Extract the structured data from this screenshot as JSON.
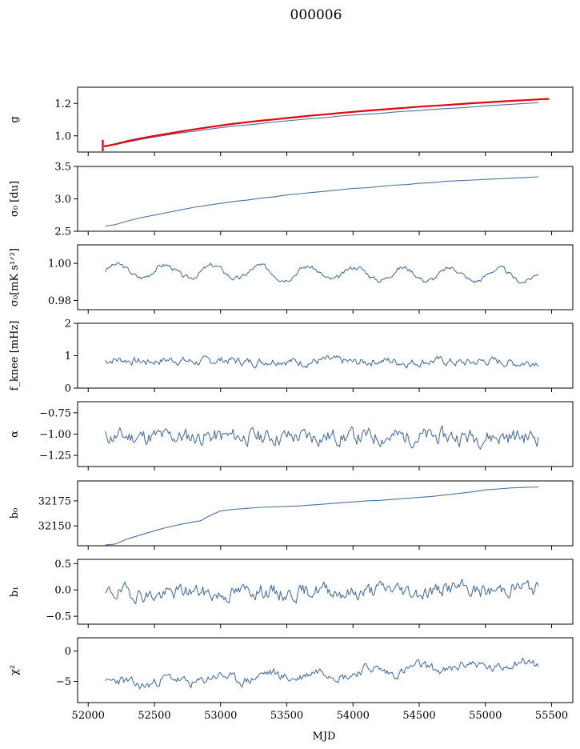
{
  "figure": {
    "title": "000006",
    "xlabel": "MJD",
    "xlim": [
      51920,
      55660
    ],
    "xticks": [
      52000,
      52500,
      53000,
      53500,
      54000,
      54500,
      55000,
      55500
    ],
    "line_color": "#4c72a4",
    "accent_color": "#e8000b"
  },
  "chart_data": [
    {
      "type": "line",
      "id": "g",
      "ylabel": "g",
      "ylim": [
        0.9,
        1.3
      ],
      "yticks": [
        1.0,
        1.2
      ],
      "yticklabels": [
        "1.0",
        "1.2"
      ],
      "show_xticklabels": false,
      "series": [
        {
          "color": "#4c72a4",
          "x": [
            52120,
            52200,
            52300,
            52400,
            52500,
            52600,
            52700,
            52800,
            52900,
            53000,
            53100,
            53200,
            53300,
            53400,
            53500,
            53600,
            53700,
            53800,
            53900,
            54000,
            54100,
            54200,
            54300,
            54400,
            54500,
            54600,
            54700,
            54800,
            54900,
            55000,
            55100,
            55200,
            55300,
            55400
          ],
          "y": [
            0.94,
            0.945,
            0.962,
            0.978,
            0.993,
            1.005,
            1.018,
            1.028,
            1.04,
            1.05,
            1.06,
            1.067,
            1.075,
            1.085,
            1.092,
            1.1,
            1.108,
            1.113,
            1.122,
            1.128,
            1.133,
            1.138,
            1.146,
            1.152,
            1.156,
            1.163,
            1.168,
            1.172,
            1.178,
            1.185,
            1.19,
            1.195,
            1.2,
            1.205
          ]
        },
        {
          "color": "#e8000b",
          "x": [
            52120,
            52200,
            52300,
            52400,
            52500,
            52600,
            52700,
            52800,
            52900,
            53000,
            53100,
            53200,
            53300,
            53400,
            53500,
            53600,
            53700,
            53800,
            53900,
            54000,
            54100,
            54200,
            54300,
            54400,
            54500,
            54600,
            54700,
            54800,
            54900,
            55000,
            55100,
            55200,
            55300,
            55400,
            55480
          ],
          "y": [
            0.935,
            0.948,
            0.968,
            0.985,
            1.0,
            1.013,
            1.027,
            1.04,
            1.052,
            1.064,
            1.075,
            1.084,
            1.093,
            1.101,
            1.11,
            1.118,
            1.126,
            1.133,
            1.141,
            1.148,
            1.155,
            1.161,
            1.167,
            1.173,
            1.18,
            1.185,
            1.19,
            1.196,
            1.201,
            1.206,
            1.211,
            1.216,
            1.22,
            1.225,
            1.228
          ]
        }
      ],
      "errorbar": {
        "x": 52110,
        "y": 0.94,
        "ylow": 0.905,
        "yhigh": 0.975
      }
    },
    {
      "type": "line",
      "id": "sigma0_du",
      "ylabel": "σ₀ [du]",
      "ylim": [
        2.5,
        3.5
      ],
      "yticks": [
        2.5,
        3.0,
        3.5
      ],
      "yticklabels": [
        "2.5",
        "3.0",
        "3.5"
      ],
      "show_xticklabels": false,
      "series": [
        {
          "color": "#4c72a4",
          "x": [
            52130,
            52200,
            52300,
            52400,
            52500,
            52600,
            52700,
            52800,
            52900,
            53000,
            53100,
            53200,
            53300,
            53400,
            53500,
            53600,
            53700,
            53800,
            53900,
            54000,
            54100,
            54200,
            54300,
            54400,
            54500,
            54600,
            54700,
            54800,
            54900,
            55000,
            55100,
            55200,
            55300,
            55400
          ],
          "y": [
            2.58,
            2.6,
            2.66,
            2.71,
            2.75,
            2.79,
            2.83,
            2.87,
            2.9,
            2.93,
            2.96,
            2.98,
            3.01,
            3.03,
            3.06,
            3.08,
            3.1,
            3.12,
            3.14,
            3.16,
            3.17,
            3.19,
            3.21,
            3.22,
            3.24,
            3.25,
            3.27,
            3.28,
            3.29,
            3.3,
            3.31,
            3.32,
            3.33,
            3.34
          ]
        }
      ]
    },
    {
      "type": "line",
      "id": "sigma0_mK",
      "ylabel": "σ₀[mK s¹ᐟ²]",
      "ylim": [
        0.975,
        1.01
      ],
      "yticks": [
        0.98,
        1.0
      ],
      "yticklabels": [
        "0.98",
        "1.00"
      ],
      "show_xticklabels": false,
      "noisy": {
        "x0": 52130,
        "x1": 55400,
        "n": 330,
        "base": 0.996,
        "trend": -0.0025,
        "wave_amp": 0.0035,
        "wave_period": 360,
        "noise": 0.0012,
        "seed": 3
      },
      "series": [
        {
          "color": "#4c72a4"
        }
      ]
    },
    {
      "type": "line",
      "id": "fknee",
      "ylabel": "f_knee [mHz]",
      "ylim": [
        0,
        2
      ],
      "yticks": [
        0,
        1,
        2
      ],
      "yticklabels": [
        "0",
        "1",
        "2"
      ],
      "show_xticklabels": false,
      "noisy": {
        "x0": 52130,
        "x1": 55400,
        "n": 330,
        "base": 0.85,
        "trend": -0.05,
        "wave_amp": 0.03,
        "wave_period": 400,
        "noise": 0.12,
        "seed": 7
      },
      "series": [
        {
          "color": "#4c72a4"
        }
      ]
    },
    {
      "type": "line",
      "id": "alpha",
      "ylabel": "α",
      "ylim": [
        -1.38,
        -0.62
      ],
      "yticks": [
        -1.25,
        -1.0,
        -0.75
      ],
      "yticklabels": [
        "−1.25",
        "−1.00",
        "−0.75"
      ],
      "show_xticklabels": false,
      "noisy": {
        "x0": 52130,
        "x1": 55400,
        "n": 330,
        "base": -1.03,
        "trend": 0.0,
        "wave_amp": 0.0,
        "wave_period": 400,
        "noise": 0.09,
        "seed": 11
      },
      "series": [
        {
          "color": "#4c72a4"
        }
      ]
    },
    {
      "type": "line",
      "id": "b0",
      "ylabel": "b₀",
      "ylim": [
        32130,
        32195
      ],
      "yticks": [
        32150,
        32175
      ],
      "yticklabels": [
        "32150",
        "32175"
      ],
      "show_xticklabels": false,
      "series": [
        {
          "color": "#4c72a4",
          "x": [
            52130,
            52200,
            52300,
            52400,
            52500,
            52600,
            52700,
            52800,
            52850,
            52900,
            53000,
            53100,
            53200,
            53300,
            53400,
            53500,
            53600,
            53700,
            53800,
            53900,
            54000,
            54100,
            54200,
            54300,
            54400,
            54500,
            54600,
            54700,
            54800,
            54900,
            55000,
            55100,
            55200,
            55300,
            55400
          ],
          "y": [
            32131,
            32131.5,
            32137,
            32141,
            32145,
            32148.5,
            32151.5,
            32154,
            32155,
            32159,
            32165,
            32166.5,
            32167.5,
            32168.5,
            32169,
            32169.5,
            32170,
            32171,
            32172,
            32173,
            32174,
            32175,
            32175.5,
            32176.5,
            32177.5,
            32178.5,
            32179.5,
            32181,
            32182.5,
            32184,
            32186,
            32187,
            32188,
            32188.5,
            32189
          ]
        }
      ]
    },
    {
      "type": "line",
      "id": "b1",
      "ylabel": "b₁",
      "ylim": [
        -0.65,
        0.58
      ],
      "yticks": [
        -0.5,
        0.0,
        0.5
      ],
      "yticklabels": [
        "−0.5",
        "0.0",
        "0.5"
      ],
      "show_xticklabels": false,
      "noisy": {
        "x0": 52130,
        "x1": 55400,
        "n": 330,
        "base": -0.08,
        "trend": 0.1,
        "wave_amp": 0.04,
        "wave_period": 500,
        "noise": 0.13,
        "seed": 19
      },
      "series": [
        {
          "color": "#4c72a4"
        }
      ]
    },
    {
      "type": "line",
      "id": "chi2",
      "ylabel": "χ²",
      "ylim": [
        -8.5,
        2.2
      ],
      "yticks": [
        -5,
        0
      ],
      "yticklabels": [
        "−5",
        "0"
      ],
      "show_xticklabels": true,
      "noisy": {
        "x0": 52130,
        "x1": 55400,
        "n": 330,
        "base": -5.5,
        "trend": 3.5,
        "wave_amp": 0.6,
        "wave_period": 380,
        "noise": 0.75,
        "seed": 23
      },
      "series": [
        {
          "color": "#4c72a4"
        }
      ]
    }
  ]
}
